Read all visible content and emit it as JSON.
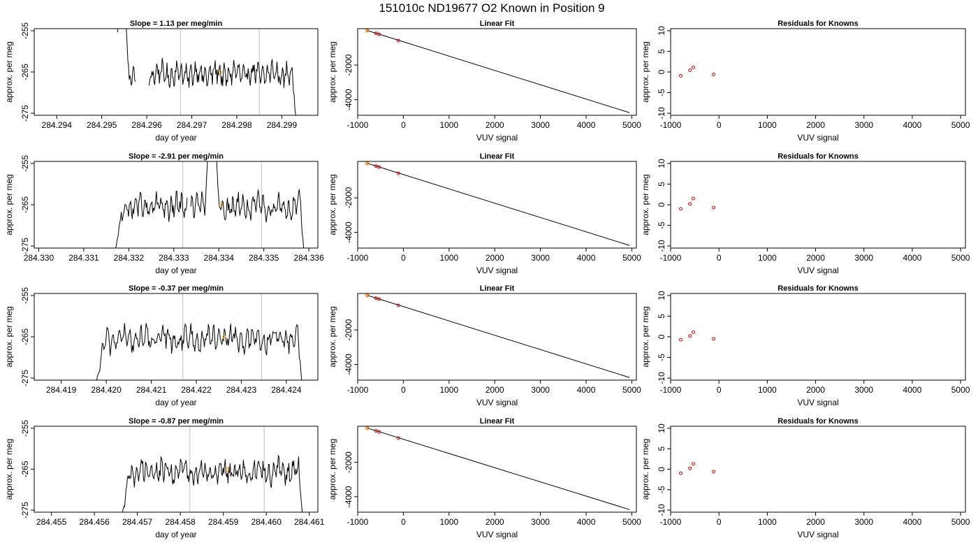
{
  "figure_title": "151010c     ND19677   O2 Known in Position  9",
  "colors": {
    "trace": "#000000",
    "known_marker": "#ffa500",
    "fit_point": "#cc0000",
    "vline": "#c8c8c8"
  },
  "chart_data": [
    {
      "row": 1,
      "type": "line",
      "title": "Slope =  1.13  per meg/min",
      "xlabel": "day of year",
      "ylabel": "approx. per meg",
      "xlim": [
        284.2935,
        284.2998
      ],
      "ylim": [
        -275.5,
        -254.5
      ],
      "xticks": [
        "284.294",
        "284.295",
        "284.296",
        "284.297",
        "284.298",
        "284.299"
      ],
      "yticks": [
        "-255",
        "-265",
        "-275"
      ],
      "start": 284.29535,
      "end": 284.29932,
      "gap": [
        284.29575,
        284.29605
      ],
      "spike_center": 284.29545,
      "vlines": [
        284.29675,
        284.2985
      ],
      "known_point": {
        "x": 284.29763,
        "y": -265.0
      }
    },
    {
      "row": 1,
      "type": "scatter",
      "title": "Linear Fit",
      "xlabel": "VUV signal",
      "ylabel": "approx. per meg",
      "xlim": [
        -1000,
        5100
      ],
      "ylim": [
        -4900,
        100
      ],
      "xticks": [
        "-1000",
        "0",
        "1000",
        "2000",
        "3000",
        "4000",
        "5000"
      ],
      "yticks": [
        "-2000",
        "-4000"
      ],
      "points": [
        {
          "x": -790,
          "y": -5
        },
        {
          "x": -600,
          "y": -170
        },
        {
          "x": -530,
          "y": -230
        },
        {
          "x": -110,
          "y": -590
        }
      ],
      "fit_line": {
        "x": [
          -790,
          4950
        ],
        "y": [
          -5,
          -4750
        ]
      }
    },
    {
      "row": 1,
      "type": "scatter",
      "title": "Residuals for Knowns",
      "xlabel": "VUV signal",
      "ylabel": "approx. per meg",
      "xlim": [
        -1000,
        5100
      ],
      "ylim": [
        -10.5,
        10.5
      ],
      "xticks": [
        "-1000",
        "0",
        "1000",
        "2000",
        "3000",
        "4000",
        "5000"
      ],
      "yticks": [
        "10",
        "5",
        "0",
        "-5",
        "-10"
      ],
      "points": [
        {
          "x": -790,
          "y": -0.9
        },
        {
          "x": -600,
          "y": 0.4
        },
        {
          "x": -530,
          "y": 1.1
        },
        {
          "x": -110,
          "y": -0.6
        }
      ]
    },
    {
      "row": 2,
      "type": "line",
      "title": "Slope =  -2.91  per meg/min",
      "xlabel": "day of year",
      "ylabel": "approx. per meg",
      "xlim": [
        284.3299,
        284.3362
      ],
      "ylim": [
        -275.5,
        -254.5
      ],
      "xticks": [
        "284.330",
        "284.331",
        "284.332",
        "284.333",
        "284.334",
        "284.335",
        "284.336"
      ],
      "yticks": [
        "-255",
        "-265",
        "-275"
      ],
      "start": 284.33167,
      "end": 284.3359,
      "gap": [
        284.3333,
        284.33337
      ],
      "spike_center": 284.33385,
      "vlines": [
        284.3332,
        284.33495
      ],
      "known_point": {
        "x": 284.33405,
        "y": -265.0
      }
    },
    {
      "row": 2,
      "type": "scatter",
      "title": "Linear Fit",
      "xlabel": "VUV signal",
      "ylabel": "approx. per meg",
      "xlim": [
        -1000,
        5100
      ],
      "ylim": [
        -4900,
        100
      ],
      "xticks": [
        "-1000",
        "0",
        "1000",
        "2000",
        "3000",
        "4000",
        "5000"
      ],
      "yticks": [
        "-2000",
        "-4000"
      ],
      "points": [
        {
          "x": -790,
          "y": -5
        },
        {
          "x": -600,
          "y": -170
        },
        {
          "x": -530,
          "y": -230
        },
        {
          "x": -110,
          "y": -590
        }
      ],
      "fit_line": {
        "x": [
          -790,
          4950
        ],
        "y": [
          -5,
          -4750
        ]
      }
    },
    {
      "row": 2,
      "type": "scatter",
      "title": "Residuals for Knowns",
      "xlabel": "VUV signal",
      "ylabel": "approx. per meg",
      "xlim": [
        -1000,
        5100
      ],
      "ylim": [
        -10.5,
        10.5
      ],
      "xticks": [
        "-1000",
        "0",
        "1000",
        "2000",
        "3000",
        "4000",
        "5000"
      ],
      "yticks": [
        "10",
        "5",
        "0",
        "-5",
        "-10"
      ],
      "points": [
        {
          "x": -790,
          "y": -1.0
        },
        {
          "x": -600,
          "y": 0.2
        },
        {
          "x": -530,
          "y": 1.5
        },
        {
          "x": -110,
          "y": -0.7
        }
      ]
    },
    {
      "row": 3,
      "type": "line",
      "title": "Slope =  -0.37  per meg/min",
      "xlabel": "day of year",
      "ylabel": "approx. per meg",
      "xlim": [
        284.4184,
        284.4247
      ],
      "ylim": [
        -275.5,
        -254.5
      ],
      "xticks": [
        "284.419",
        "284.420",
        "284.421",
        "284.422",
        "284.423",
        "284.424"
      ],
      "yticks": [
        "-255",
        "-265",
        "-275"
      ],
      "start": 284.41975,
      "end": 284.42436,
      "gap": null,
      "spike_center": null,
      "vlines": [
        284.4217,
        284.42345
      ],
      "known_point": {
        "x": 284.42262,
        "y": -265.0
      }
    },
    {
      "row": 3,
      "type": "scatter",
      "title": "Linear Fit",
      "xlabel": "VUV signal",
      "ylabel": "approx. per meg",
      "xlim": [
        -1000,
        5100
      ],
      "ylim": [
        -4900,
        100
      ],
      "xticks": [
        "-1000",
        "0",
        "1000",
        "2000",
        "3000",
        "4000",
        "5000"
      ],
      "yticks": [
        "-2000",
        "-4000"
      ],
      "points": [
        {
          "x": -790,
          "y": -5
        },
        {
          "x": -600,
          "y": -170
        },
        {
          "x": -530,
          "y": -230
        },
        {
          "x": -110,
          "y": -590
        }
      ],
      "fit_line": {
        "x": [
          -790,
          4950
        ],
        "y": [
          -5,
          -4750
        ]
      }
    },
    {
      "row": 3,
      "type": "scatter",
      "title": "Residuals for Knowns",
      "xlabel": "VUV signal",
      "ylabel": "approx. per meg",
      "xlim": [
        -1000,
        5100
      ],
      "ylim": [
        -10.5,
        10.5
      ],
      "xticks": [
        "-1000",
        "0",
        "1000",
        "2000",
        "3000",
        "4000",
        "5000"
      ],
      "yticks": [
        "10",
        "5",
        "0",
        "-5",
        "-10"
      ],
      "points": [
        {
          "x": -790,
          "y": -0.7
        },
        {
          "x": -600,
          "y": 0.2
        },
        {
          "x": -530,
          "y": 1.1
        },
        {
          "x": -110,
          "y": -0.5
        }
      ]
    },
    {
      "row": 4,
      "type": "line",
      "title": "Slope =  -0.87  per meg/min",
      "xlabel": "day of year",
      "ylabel": "approx. per meg",
      "xlim": [
        284.4546,
        284.4612
      ],
      "ylim": [
        -275.5,
        -254.5
      ],
      "xticks": [
        "284.455",
        "284.456",
        "284.457",
        "284.458",
        "284.459",
        "284.460",
        "284.461"
      ],
      "yticks": [
        "-255",
        "-265",
        "-275"
      ],
      "start": 284.45662,
      "end": 284.46085,
      "gap": null,
      "spike_center": null,
      "vlines": [
        284.45822,
        284.45995
      ],
      "known_point": {
        "x": 284.4591,
        "y": -265.0
      }
    },
    {
      "row": 4,
      "type": "scatter",
      "title": "Linear Fit",
      "xlabel": "VUV signal",
      "ylabel": "approx. per meg",
      "xlim": [
        -1000,
        5100
      ],
      "ylim": [
        -4900,
        100
      ],
      "xticks": [
        "-1000",
        "0",
        "1000",
        "2000",
        "3000",
        "4000",
        "5000"
      ],
      "yticks": [
        "-2000",
        "-4000"
      ],
      "points": [
        {
          "x": -790,
          "y": -5
        },
        {
          "x": -600,
          "y": -170
        },
        {
          "x": -530,
          "y": -230
        },
        {
          "x": -110,
          "y": -590
        }
      ],
      "fit_line": {
        "x": [
          -790,
          4950
        ],
        "y": [
          -5,
          -4750
        ]
      }
    },
    {
      "row": 4,
      "type": "scatter",
      "title": "Residuals for Knowns",
      "xlabel": "VUV signal",
      "ylabel": "approx. per meg",
      "xlim": [
        -1000,
        5100
      ],
      "ylim": [
        -10.5,
        10.5
      ],
      "xticks": [
        "-1000",
        "0",
        "1000",
        "2000",
        "3000",
        "4000",
        "5000"
      ],
      "yticks": [
        "10",
        "5",
        "0",
        "-5",
        "-10"
      ],
      "points": [
        {
          "x": -790,
          "y": -1.0
        },
        {
          "x": -600,
          "y": 0.2
        },
        {
          "x": -530,
          "y": 1.3
        },
        {
          "x": -110,
          "y": -0.6
        }
      ]
    }
  ]
}
